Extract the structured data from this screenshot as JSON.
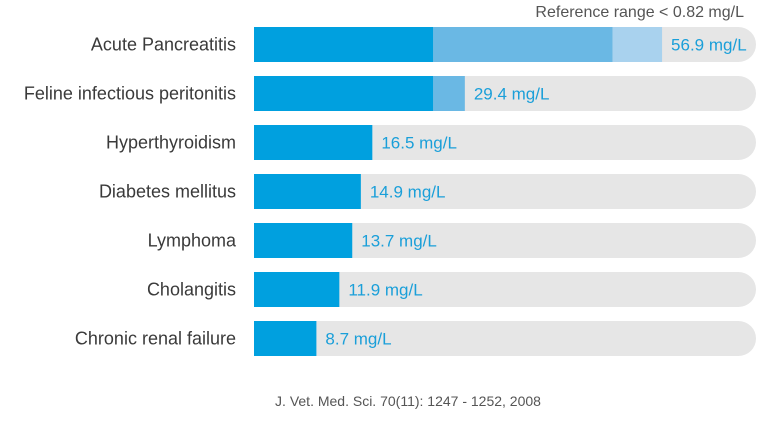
{
  "chart_data": {
    "type": "bar",
    "orientation": "horizontal",
    "reference_note": "Reference range < 0.82 mg/L",
    "source": "J. Vet. Med. Sci. 70(11): 1247 - 1252, 2008",
    "unit": "mg/L",
    "categories": [
      "Acute Pancreatitis",
      "Feline infectious peritonitis",
      "Hyperthyroidism",
      "Diabetes mellitus",
      "Lymphoma",
      "Cholangitis",
      "Chronic renal failure"
    ],
    "values": [
      56.9,
      29.4,
      16.5,
      14.9,
      13.7,
      11.9,
      8.7
    ],
    "value_labels": [
      "56.9 mg/L",
      "29.4 mg/L",
      "16.5 mg/L",
      "14.9 mg/L",
      "13.7 mg/L",
      "11.9 mg/L",
      "8.7 mg/L"
    ],
    "xlim": [
      0,
      70
    ],
    "grid": false,
    "colors": {
      "bar": "#00a0df",
      "bar_mid": "#6ab8e4",
      "bar_light": "#a9d2ee",
      "track": "#e6e6e6",
      "value_text": "#1a9fd9",
      "label_text": "#3a3a3a"
    }
  }
}
